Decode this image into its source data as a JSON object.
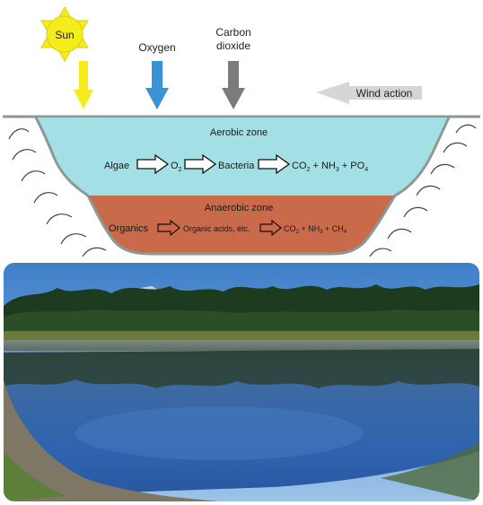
{
  "diagram": {
    "inputs": {
      "sun": "Sun",
      "oxygen": "Oxygen",
      "carbon_dioxide_line1": "Carbon",
      "carbon_dioxide_line2": "dioxide",
      "wind": "Wind action"
    },
    "aerobic_zone": {
      "title": "Aerobic zone",
      "algae": "Algae",
      "o2": "O",
      "o2_sub": "2",
      "bacteria": "Bacteria",
      "products": {
        "co": "CO",
        "co_sub": "2",
        "nh_plus": " + NH",
        "nh_sub": "3",
        "po_plus": " + PO",
        "po_sub": "4"
      }
    },
    "anaerobic_zone": {
      "title": "Anaerobic zone",
      "organics": "Organics",
      "intermediate": "Organic acids, etc.",
      "products": {
        "co": "CO",
        "co_sub": "2",
        "nh_plus": " + NH",
        "nh_sub": "3",
        "ch_plus": " + CH",
        "ch_sub": "4"
      }
    },
    "colors": {
      "sun": "#f4ec1b",
      "oxygen_arrow": "#3b93d3",
      "co2_arrow": "#7b7b7b",
      "wind_arrow": "#d6d6d6",
      "aerobic_water": "#a3e0e6",
      "anaerobic_sludge": "#c96b4a",
      "ground_line": "#8b9a92"
    }
  }
}
